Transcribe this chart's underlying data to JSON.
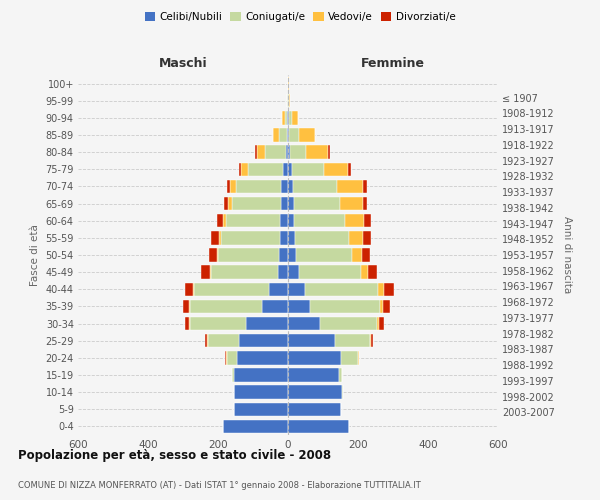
{
  "age_groups": [
    "0-4",
    "5-9",
    "10-14",
    "15-19",
    "20-24",
    "25-29",
    "30-34",
    "35-39",
    "40-44",
    "45-49",
    "50-54",
    "55-59",
    "60-64",
    "65-69",
    "70-74",
    "75-79",
    "80-84",
    "85-89",
    "90-94",
    "95-99",
    "100+"
  ],
  "birth_years": [
    "2003-2007",
    "1998-2002",
    "1993-1997",
    "1988-1992",
    "1983-1987",
    "1978-1982",
    "1973-1977",
    "1968-1972",
    "1963-1967",
    "1958-1962",
    "1953-1957",
    "1948-1952",
    "1943-1947",
    "1938-1942",
    "1933-1937",
    "1928-1932",
    "1923-1927",
    "1918-1922",
    "1913-1917",
    "1908-1912",
    "≤ 1907"
  ],
  "male": {
    "celibi": [
      185,
      155,
      155,
      155,
      145,
      140,
      120,
      75,
      55,
      30,
      25,
      22,
      22,
      20,
      20,
      15,
      5,
      2,
      2,
      0,
      0
    ],
    "coniugati": [
      0,
      0,
      0,
      5,
      30,
      90,
      160,
      205,
      215,
      190,
      175,
      170,
      155,
      140,
      130,
      100,
      60,
      25,
      8,
      2,
      0
    ],
    "vedovi": [
      0,
      0,
      0,
      0,
      2,
      2,
      2,
      2,
      2,
      3,
      4,
      5,
      8,
      12,
      15,
      20,
      25,
      15,
      8,
      2,
      0
    ],
    "divorziati": [
      0,
      0,
      0,
      0,
      2,
      5,
      12,
      18,
      22,
      25,
      22,
      22,
      18,
      10,
      8,
      5,
      5,
      2,
      0,
      0,
      0
    ]
  },
  "female": {
    "nubili": [
      175,
      150,
      155,
      145,
      150,
      135,
      90,
      62,
      48,
      30,
      22,
      20,
      18,
      18,
      15,
      12,
      5,
      3,
      2,
      0,
      0
    ],
    "coniugate": [
      0,
      0,
      2,
      10,
      50,
      100,
      165,
      200,
      210,
      178,
      160,
      155,
      145,
      130,
      125,
      90,
      45,
      28,
      8,
      2,
      0
    ],
    "vedove": [
      0,
      0,
      0,
      0,
      2,
      3,
      5,
      8,
      15,
      20,
      30,
      40,
      55,
      65,
      75,
      70,
      65,
      45,
      18,
      5,
      2
    ],
    "divorziate": [
      0,
      0,
      0,
      0,
      2,
      5,
      15,
      20,
      30,
      25,
      22,
      22,
      18,
      12,
      10,
      8,
      5,
      2,
      0,
      0,
      0
    ]
  },
  "colors": {
    "celibi": "#4472C4",
    "coniugati": "#c5d9a0",
    "vedovi": "#ffc040",
    "divorziati": "#cc2200"
  },
  "title": "Popolazione per età, sesso e stato civile - 2008",
  "subtitle": "COMUNE DI NIZZA MONFERRATO (AT) - Dati ISTAT 1° gennaio 2008 - Elaborazione TUTTITALIA.IT",
  "xlabel_left": "Maschi",
  "xlabel_right": "Femmine",
  "ylabel_left": "Fasce di età",
  "ylabel_right": "Anni di nascita",
  "xlim": 600,
  "xticks": [
    -600,
    -400,
    -200,
    0,
    200,
    400,
    600
  ],
  "legend_labels": [
    "Celibi/Nubili",
    "Coniugati/e",
    "Vedovi/e",
    "Divorziati/e"
  ],
  "background_color": "#f5f5f5"
}
